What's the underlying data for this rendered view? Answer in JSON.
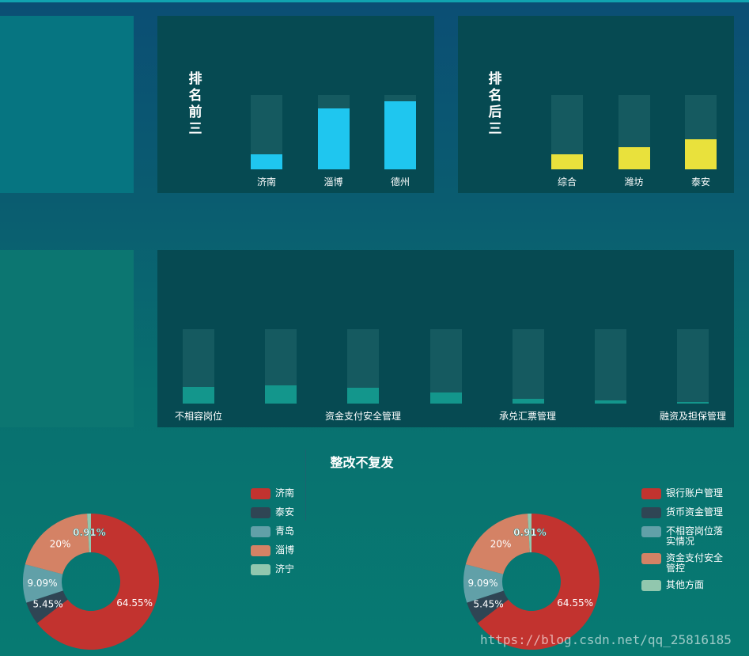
{
  "colors": {
    "top_bar": "#1fc6ef",
    "bottom_bar": "#e9e13c",
    "category_bar": "#13968c",
    "track": "#155a60",
    "pie": [
      "#c2332f",
      "#2f4554",
      "#61a0a8",
      "#d48265",
      "#91c7ae"
    ]
  },
  "top_ranking": {
    "title": "排名前三",
    "chart_data": {
      "type": "bar",
      "categories": [
        "济南",
        "淄博",
        "德州"
      ],
      "values": [
        20,
        82,
        91
      ],
      "ylim": [
        0,
        100
      ]
    }
  },
  "bottom_ranking": {
    "title": "排名后三",
    "chart_data": {
      "type": "bar",
      "categories": [
        "综合",
        "潍坊",
        "泰安"
      ],
      "values": [
        20,
        30,
        40
      ],
      "ylim": [
        0,
        100
      ]
    }
  },
  "categories_chart": {
    "axis_labels": [
      "不相容岗位",
      "资金支付安全管理",
      "承兑汇票管理",
      "融资及担保管理"
    ],
    "chart_data": {
      "type": "bar",
      "values": [
        22,
        24,
        21,
        15,
        6,
        4,
        2
      ],
      "ylim": [
        0,
        100
      ]
    }
  },
  "pies": {
    "title": "整改不复发",
    "chart_data": [
      {
        "type": "pie",
        "legend": [
          "济南",
          "泰安",
          "青岛",
          "淄博",
          "济宁"
        ],
        "values": [
          64.55,
          5.45,
          9.09,
          20,
          0.91
        ],
        "labels": [
          "64.55%",
          "5.45%",
          "9.09%",
          "20%",
          "0.91%"
        ]
      },
      {
        "type": "pie",
        "legend": [
          "银行账户管理",
          "货币资金管理",
          "不相容岗位落实情况",
          "资金支付安全管控",
          "其他方面"
        ],
        "values": [
          64.55,
          5.45,
          9.09,
          20,
          0.91
        ],
        "labels": [
          "64.55%",
          "5.45%",
          "9.09%",
          "20%",
          "0.91%"
        ]
      }
    ]
  },
  "watermark": "https://blog.csdn.net/qq_25816185"
}
